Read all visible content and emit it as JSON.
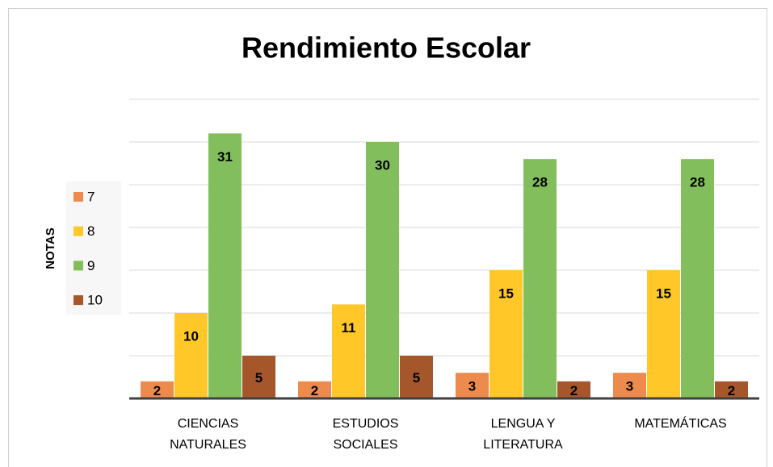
{
  "chart_data": {
    "type": "bar",
    "title": "Rendimiento Escolar",
    "y_label": "NOTAS",
    "categories": [
      "CIENCIAS\nNATURALES",
      "ESTUDIOS\nSOCIALES",
      "LENGUA Y\nLITERATURA",
      "MATEMÁTICAS"
    ],
    "series": [
      {
        "name": "7",
        "color": "#ED8B4E",
        "values": [
          2,
          2,
          3,
          3
        ]
      },
      {
        "name": "8",
        "color": "#FFC828",
        "values": [
          10,
          11,
          15,
          15
        ]
      },
      {
        "name": "9",
        "color": "#82BF5C",
        "values": [
          31,
          30,
          28,
          28
        ]
      },
      {
        "name": "10",
        "color": "#A5572B",
        "values": [
          5,
          5,
          2,
          2
        ]
      }
    ],
    "ylim": [
      0,
      35
    ],
    "yticks": [
      0,
      5,
      10,
      15,
      20,
      25,
      30,
      35
    ],
    "grid": true,
    "legend": "left"
  }
}
